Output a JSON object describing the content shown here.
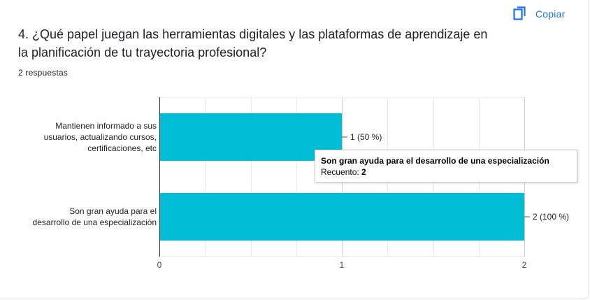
{
  "copy_label": "Copiar",
  "question": "4. ¿Qué papel juegan las herramientas digitales y las plataformas de aprendizaje en la planificación de tu trayectoria profesional?",
  "response_count": "2 respuestas",
  "tooltip": {
    "title": "Son gran ayuda para el desarrollo de una especialización",
    "count_label": "Recuento:",
    "count_value": "2"
  },
  "colors": {
    "bar": "#00bcd4",
    "accent": "#1a73e8"
  },
  "chart_data": {
    "type": "bar",
    "orientation": "horizontal",
    "categories": [
      "Mantienen informado a sus usuarios, actualizando cursos, certificaciones, etc",
      "Son gran ayuda para el desarrollo de una especialización"
    ],
    "category_lines": [
      [
        "Mantienen informado a sus",
        "usuarios, actualizando cursos,",
        "certificaciones, etc"
      ],
      [
        "Son gran ayuda para el",
        "desarrollo de una especialización"
      ]
    ],
    "values": [
      1,
      2
    ],
    "data_labels": [
      "1 (50 %)",
      "2 (100 %)"
    ],
    "xlim": [
      0,
      2
    ],
    "xticks": [
      "0",
      "1",
      "2"
    ],
    "grid": true
  }
}
